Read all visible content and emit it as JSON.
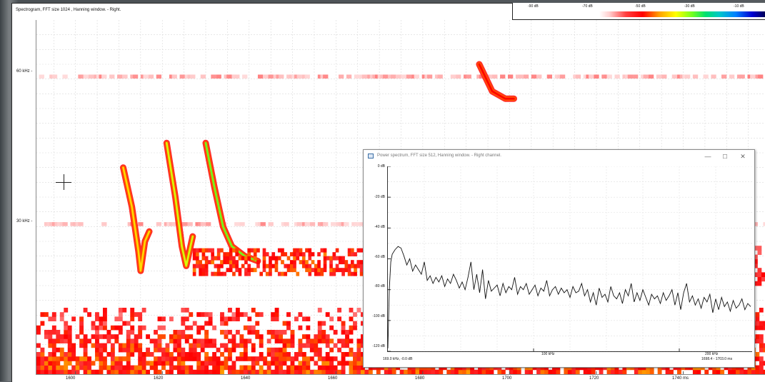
{
  "spectrogram": {
    "title": "Spectrogram, FFT size 1024 , Hanning window. - Right.",
    "colorbar_labels": [
      "-90 dB",
      "-70 dB",
      "-50 dB",
      "-30 dB",
      "-10 dB"
    ],
    "y_tick_labels": [
      "60 kHz -",
      "30 kHz -"
    ],
    "x_tick_labels": [
      "1600",
      "1620",
      "1640",
      "1660",
      "1680",
      "1700",
      "1720",
      "1740 ms"
    ]
  },
  "power_spectrum": {
    "title": "Power spectrum, FFT size 512, Hanning window. - Right channel.",
    "controls": {
      "minimize": "—",
      "maximize": "☐",
      "close": "✕"
    },
    "y_tick_labels": [
      "0 dB",
      "-20 dB",
      "-40 dB",
      "-60 dB",
      "-80 dB",
      "-100 dB",
      "-120 dB"
    ],
    "x_tick_labels": [
      "100 kHz",
      "200 kHz"
    ],
    "cursor_readout": "169.0 kHz, -0.0 dB",
    "range_readout": "1698.4 - 1703.0 ms"
  },
  "chart_data": [
    {
      "type": "heatmap",
      "title": "Spectrogram, FFT size 1024 , Hanning window. - Right.",
      "x_unit": "ms",
      "y_unit": "kHz",
      "xlim": [
        1591,
        1759
      ],
      "ylim": [
        0,
        72
      ],
      "x_ticks": [
        1600,
        1620,
        1640,
        1660,
        1680,
        1700,
        1720,
        1740
      ],
      "y_ticks": [
        30,
        60
      ],
      "color_scale_db": [
        -90,
        -70,
        -50,
        -30,
        -10
      ],
      "grid": true,
      "features": [
        {
          "kind": "band",
          "t": [
            1591,
            1759
          ],
          "f_khz": 60.5,
          "level_db": -70
        },
        {
          "kind": "band",
          "t": [
            1591,
            1759
          ],
          "f_khz": 30.5,
          "level_db": -70
        },
        {
          "kind": "call",
          "points": [
            [
              1611,
              42
            ],
            [
              1613,
              34
            ],
            [
              1614.5,
              25
            ],
            [
              1615,
              21
            ],
            [
              1616,
              27
            ],
            [
              1617,
              29
            ]
          ],
          "level_db": -40
        },
        {
          "kind": "call",
          "points": [
            [
              1621,
              47
            ],
            [
              1623,
              36
            ],
            [
              1624.5,
              26
            ],
            [
              1625.5,
              22
            ],
            [
              1626.5,
              26
            ],
            [
              1627,
              28
            ]
          ],
          "level_db": -35
        },
        {
          "kind": "call",
          "points": [
            [
              1630,
              47
            ],
            [
              1632,
              38
            ],
            [
              1634,
              30
            ],
            [
              1636,
              26
            ],
            [
              1639,
              24
            ],
            [
              1642,
              23
            ]
          ],
          "level_db": -30
        },
        {
          "kind": "tail",
          "t": [
            1627,
            1668
          ],
          "f_khz": 21.5,
          "level_db": -55
        },
        {
          "kind": "call",
          "points": [
            [
              1693,
              63
            ],
            [
              1696,
              57.5
            ],
            [
              1699,
              56
            ],
            [
              1701,
              56
            ]
          ],
          "level_db": -55
        },
        {
          "kind": "noise",
          "t": [
            1591,
            1759
          ],
          "f_khz": [
            0,
            13
          ],
          "level_db": -60
        }
      ]
    },
    {
      "type": "line",
      "title": "Power spectrum, FFT size 512, Hanning window. - Right channel.",
      "x_unit": "kHz",
      "y_unit": "dB",
      "xlim": [
        0,
        250
      ],
      "ylim": [
        -120,
        0
      ],
      "x_ticks": [
        100,
        200
      ],
      "y_ticks": [
        0,
        -20,
        -40,
        -60,
        -80,
        -100,
        -120
      ],
      "grid": true,
      "x": [
        0,
        1,
        2,
        3,
        5,
        7,
        9,
        11,
        13,
        15,
        17,
        19,
        21,
        23,
        25,
        27,
        29,
        31,
        33,
        35,
        37,
        39,
        41,
        43,
        45,
        47,
        49,
        51,
        53,
        55,
        57,
        59,
        61,
        63,
        65,
        67,
        69,
        71,
        73,
        75,
        77,
        79,
        81,
        83,
        85,
        87,
        89,
        91,
        93,
        95,
        97,
        99,
        101,
        103,
        105,
        107,
        109,
        111,
        113,
        115,
        117,
        119,
        121,
        123,
        125,
        127,
        129,
        131,
        133,
        135,
        137,
        139,
        141,
        143,
        145,
        147,
        149,
        151,
        153,
        155,
        157,
        159,
        161,
        163,
        165,
        167,
        169,
        171,
        173,
        175,
        177,
        179,
        181,
        183,
        185,
        187,
        189,
        191,
        193,
        195,
        197,
        199,
        201,
        203,
        205,
        207,
        209,
        211,
        213,
        215,
        217,
        219,
        221,
        223,
        225,
        227,
        229,
        231,
        233,
        235,
        237,
        239,
        241,
        243,
        245,
        247,
        249
      ],
      "y": [
        -118,
        -80,
        -62,
        -57,
        -54,
        -52,
        -53,
        -58,
        -64,
        -60,
        -68,
        -64,
        -67,
        -70,
        -62,
        -74,
        -71,
        -76,
        -72,
        -75,
        -71,
        -78,
        -73,
        -76,
        -70,
        -74,
        -79,
        -75,
        -80,
        -72,
        -62,
        -80,
        -70,
        -82,
        -67,
        -86,
        -74,
        -81,
        -79,
        -77,
        -84,
        -76,
        -82,
        -78,
        -80,
        -72,
        -83,
        -78,
        -80,
        -76,
        -83,
        -80,
        -77,
        -84,
        -79,
        -81,
        -74,
        -84,
        -80,
        -78,
        -83,
        -79,
        -82,
        -80,
        -85,
        -78,
        -82,
        -81,
        -76,
        -84,
        -80,
        -88,
        -82,
        -90,
        -79,
        -85,
        -83,
        -88,
        -78,
        -84,
        -86,
        -82,
        -89,
        -80,
        -84,
        -76,
        -88,
        -82,
        -87,
        -80,
        -85,
        -90,
        -83,
        -86,
        -84,
        -89,
        -82,
        -87,
        -84,
        -80,
        -90,
        -82,
        -93,
        -82,
        -76,
        -88,
        -84,
        -90,
        -86,
        -92,
        -85,
        -88,
        -83,
        -95,
        -86,
        -93,
        -85,
        -91,
        -88,
        -94,
        -87,
        -92,
        -90,
        -86,
        -93,
        -89,
        -91
      ]
    }
  ]
}
